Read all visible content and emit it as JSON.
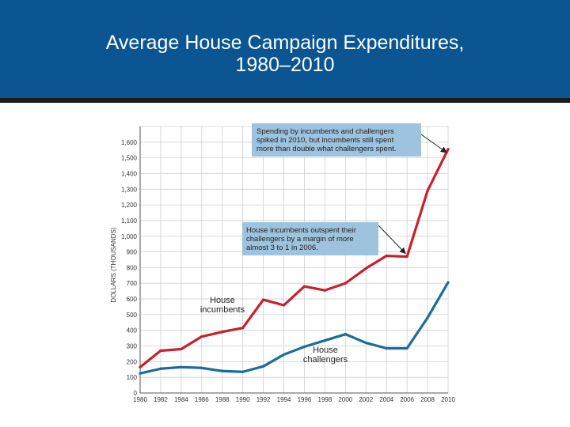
{
  "header": {
    "title_line1": "Average House Campaign Expenditures,",
    "title_line2": "1980–2010"
  },
  "colors": {
    "header_bg": "#0a5592",
    "incumbents": "#c8202e",
    "challengers": "#1c6c99",
    "callout_bg": "#9dc3df"
  },
  "chart_data": {
    "type": "line",
    "title": "Average House Campaign Expenditures, 1980–2010",
    "xlabel": "",
    "ylabel": "DOLLARS (THOUSANDS)",
    "ylim": [
      0,
      1700
    ],
    "yticks": [
      0,
      100,
      200,
      300,
      400,
      500,
      600,
      700,
      800,
      900,
      1000,
      1100,
      1200,
      1300,
      1400,
      1500,
      1600
    ],
    "ytick_labels": [
      "0",
      "100",
      "200",
      "300",
      "400",
      "500",
      "600",
      "700",
      "800",
      "900",
      "1,000",
      "1,100",
      "1,200",
      "1,300",
      "1,400",
      "1,500",
      "1,600"
    ],
    "x": [
      1980,
      1982,
      1984,
      1986,
      1988,
      1990,
      1992,
      1994,
      1996,
      1998,
      2000,
      2002,
      2004,
      2006,
      2008,
      2010
    ],
    "xtick_labels": [
      "1980",
      "1982",
      "1984",
      "1986",
      "1988",
      "1990",
      "1992",
      "1994",
      "1996",
      "1998",
      "2000",
      "2002",
      "2004",
      "2006",
      "2008",
      "2010"
    ],
    "grid": true,
    "series": [
      {
        "name": "House incumbents",
        "label_line1": "House",
        "label_line2": "incumbents",
        "values": [
          165,
          270,
          280,
          360,
          390,
          415,
          595,
          560,
          680,
          655,
          700,
          795,
          875,
          870,
          1290,
          1555
        ]
      },
      {
        "name": "House challengers",
        "label_line1": "House",
        "label_line2": "challengers",
        "values": [
          125,
          155,
          165,
          160,
          140,
          135,
          170,
          245,
          295,
          335,
          375,
          320,
          285,
          285,
          480,
          705
        ]
      }
    ],
    "annotations": [
      {
        "lines": [
          "Spending by incumbents and challengers",
          "spiked in 2010, but incumbents still spent",
          "more than double what challengers spent."
        ],
        "points_to": {
          "x": 2010,
          "y": 1555
        }
      },
      {
        "lines": [
          "House incumbents outspent their",
          "challengers by a margin of more",
          "almost 3 to 1 in 2006."
        ],
        "points_to": {
          "x": 2006,
          "y": 870
        }
      }
    ]
  }
}
